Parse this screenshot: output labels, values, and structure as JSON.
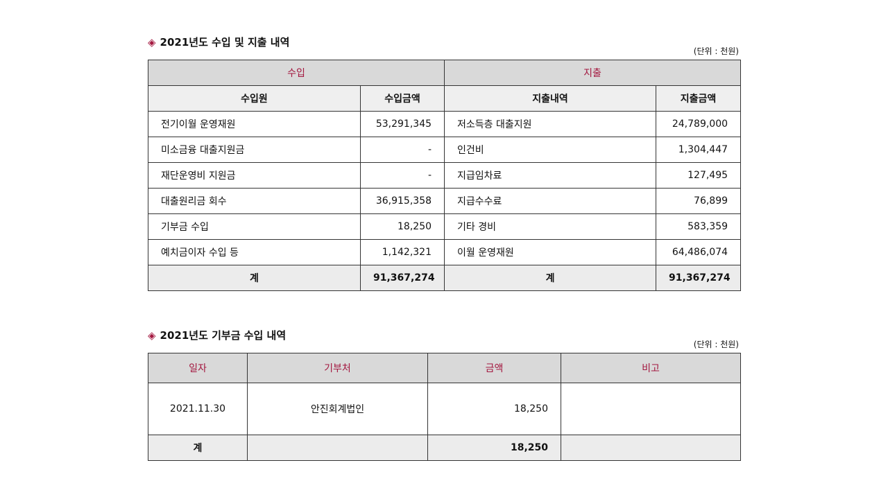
{
  "sections": [
    {
      "title": "2021년도 수입 및 지출 내역",
      "unit": "(단위 : 천원)",
      "group_headers": [
        "수입",
        "지출"
      ],
      "headers": [
        "수입원",
        "수입금액",
        "지출내역",
        "지출금액"
      ],
      "rows": [
        [
          "전기이월 운영재원",
          "53,291,345",
          "저소득층 대출지원",
          "24,789,000"
        ],
        [
          "미소금융 대출지원금",
          "-",
          "인건비",
          "1,304,447"
        ],
        [
          "재단운영비 지원금",
          "-",
          "지급임차료",
          "127,495"
        ],
        [
          "대출원리금 회수",
          "36,915,358",
          "지급수수료",
          "76,899"
        ],
        [
          "기부금 수입",
          "18,250",
          "기타 경비",
          "583,359"
        ],
        [
          "예치금이자 수입 등",
          "1,142,321",
          "이월 운영재원",
          "64,486,074"
        ]
      ],
      "total": [
        "계",
        "91,367,274",
        "계",
        "91,367,274"
      ]
    },
    {
      "title": "2021년도 기부금 수입 내역",
      "unit": "(단위 : 천원)",
      "headers": [
        "일자",
        "기부처",
        "금액",
        "비고"
      ],
      "rows": [
        [
          "2021.11.30",
          "안진회계법인",
          "18,250"
        ]
      ],
      "total": [
        "계",
        "18,250"
      ]
    }
  ]
}
